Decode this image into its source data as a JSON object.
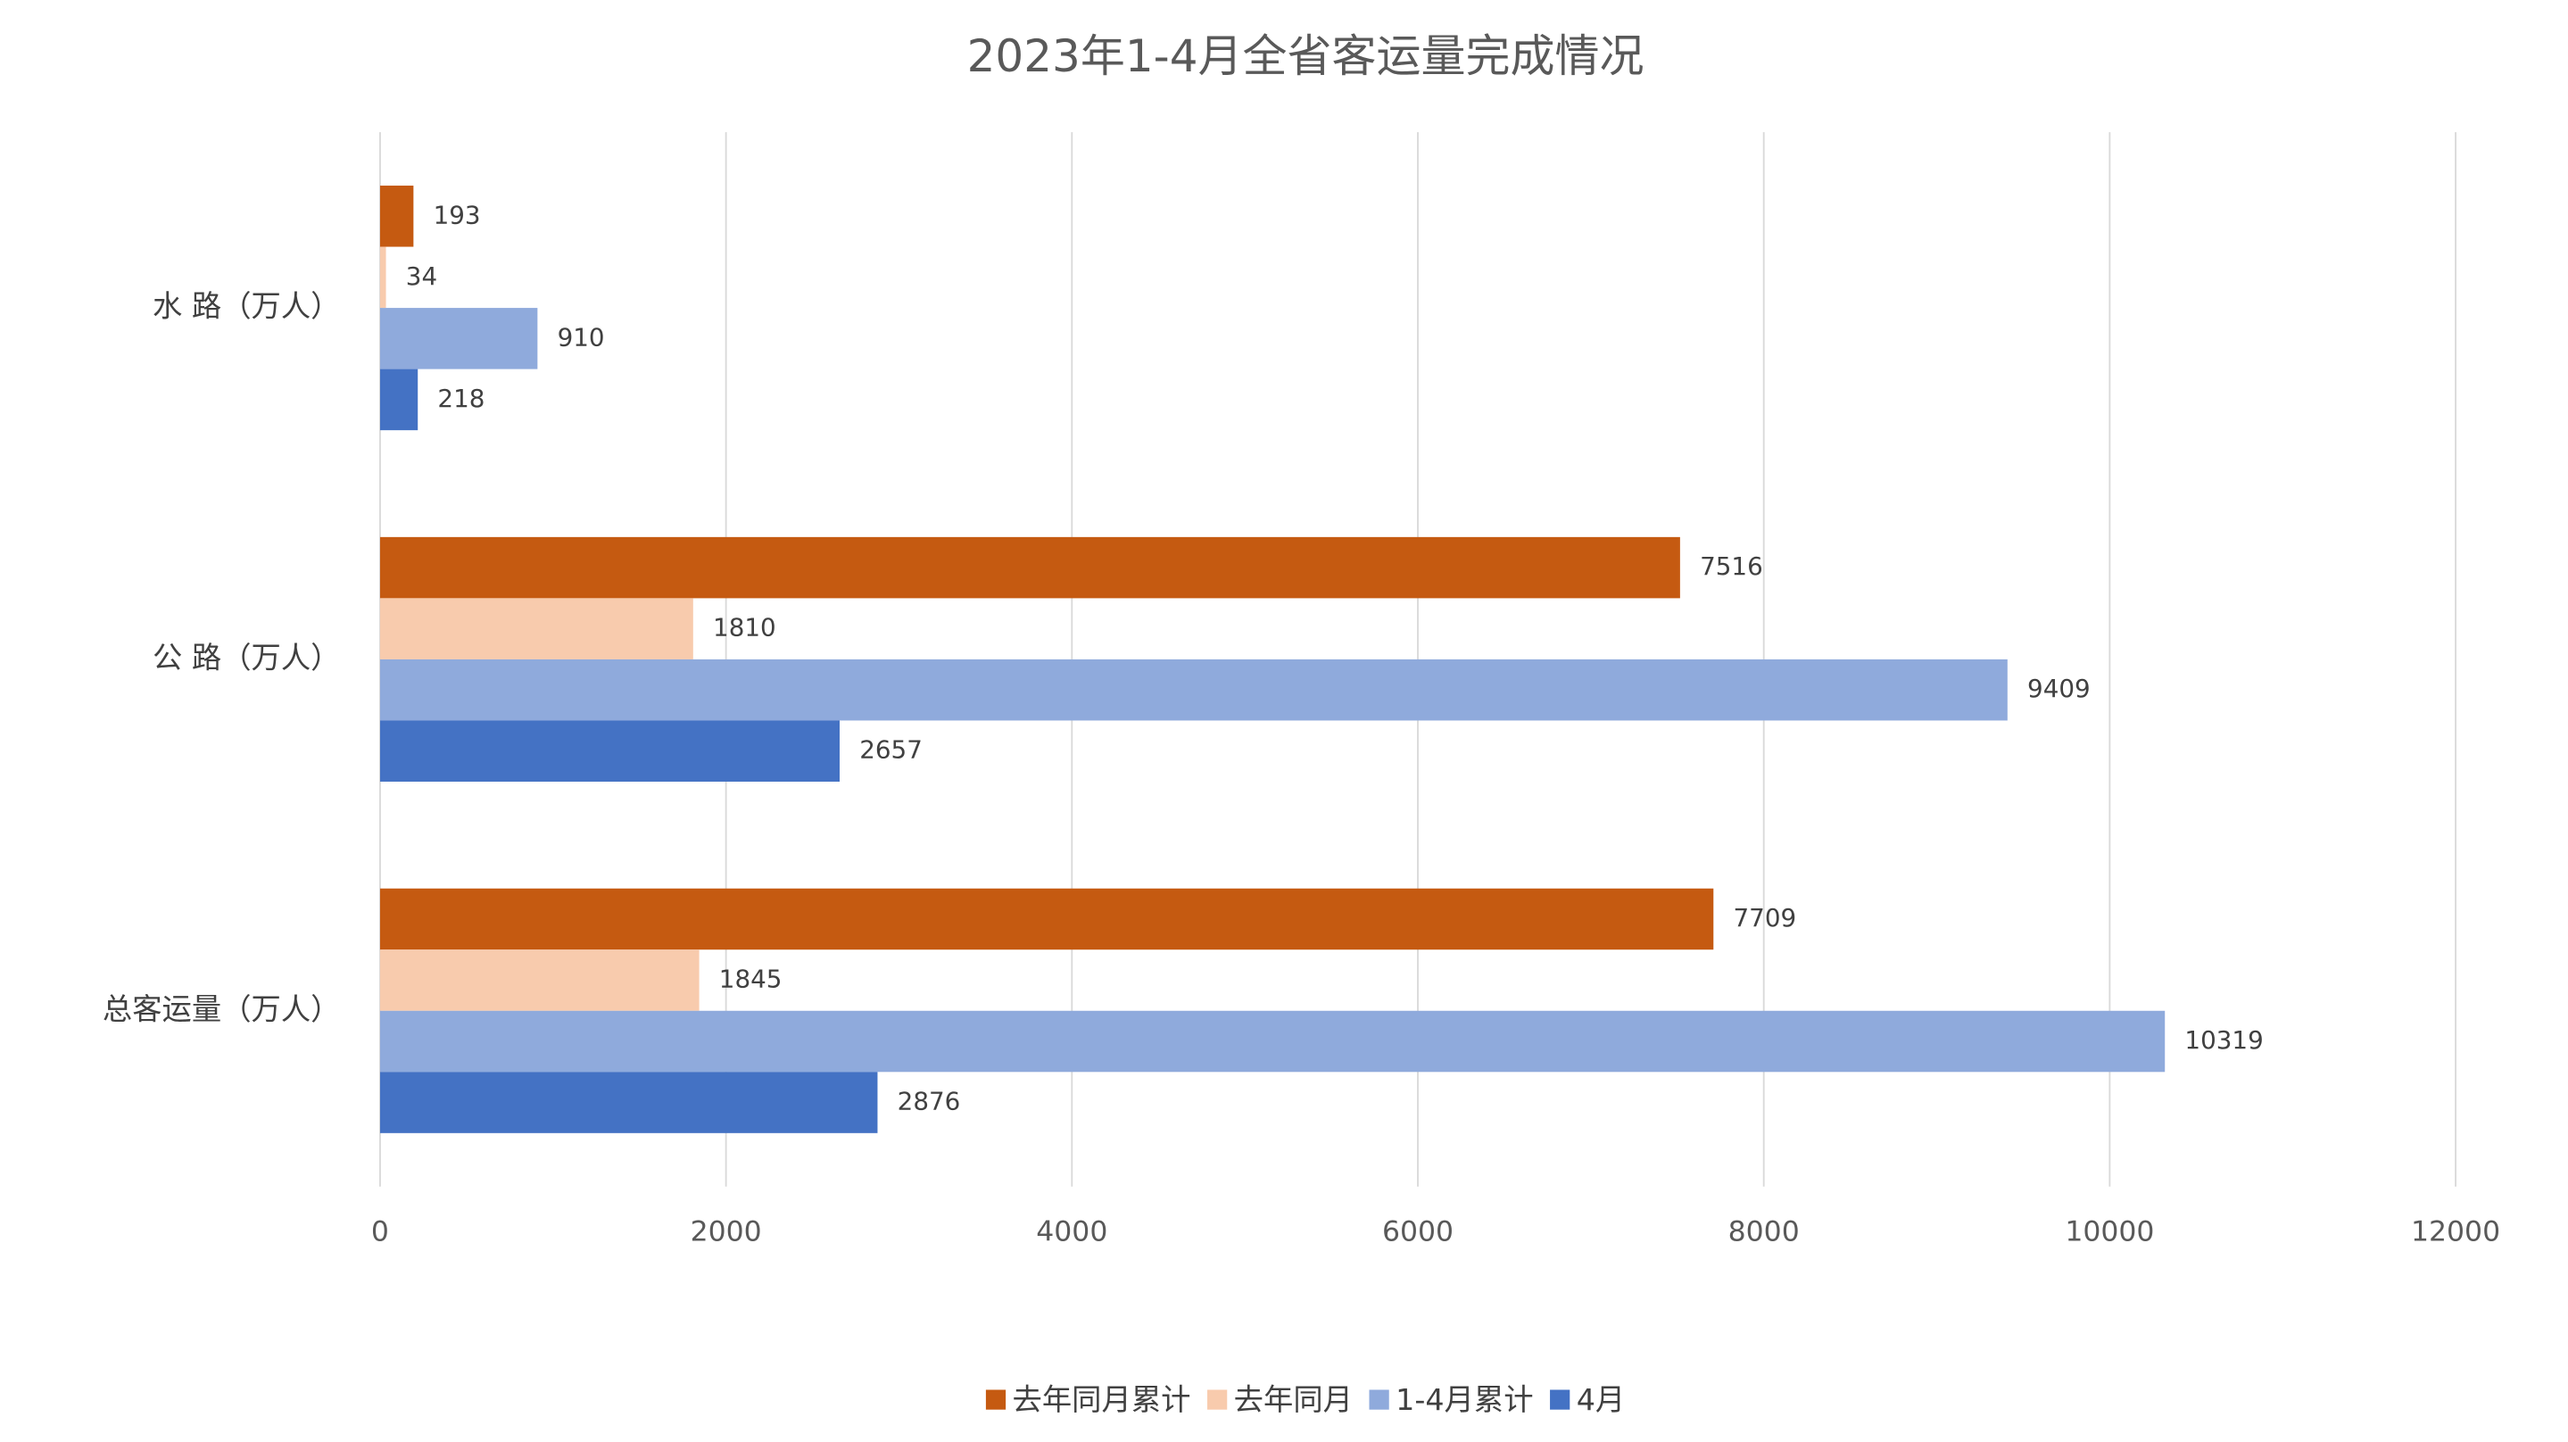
{
  "chart_data": {
    "type": "bar",
    "orientation": "horizontal",
    "title": "2023年1-4月全省客运量完成情况",
    "categories": [
      "水 路（万人）",
      "公 路（万人）",
      "总客运量（万人）"
    ],
    "series": [
      {
        "name": "去年同月累计",
        "color": "#C55A11",
        "values": [
          193,
          7516,
          7709
        ]
      },
      {
        "name": "去年同月",
        "color": "#F8CBAD",
        "values": [
          34,
          1810,
          1845
        ]
      },
      {
        "name": "1-4月累计",
        "color": "#8FAADC",
        "values": [
          910,
          9409,
          10319
        ]
      },
      {
        "name": "4月",
        "color": "#4472C4",
        "values": [
          218,
          2657,
          2876
        ]
      }
    ],
    "xlim": [
      0,
      12000
    ],
    "xticks": [
      0,
      2000,
      4000,
      6000,
      8000,
      10000,
      12000
    ],
    "grid": true,
    "legend": "bottom"
  }
}
